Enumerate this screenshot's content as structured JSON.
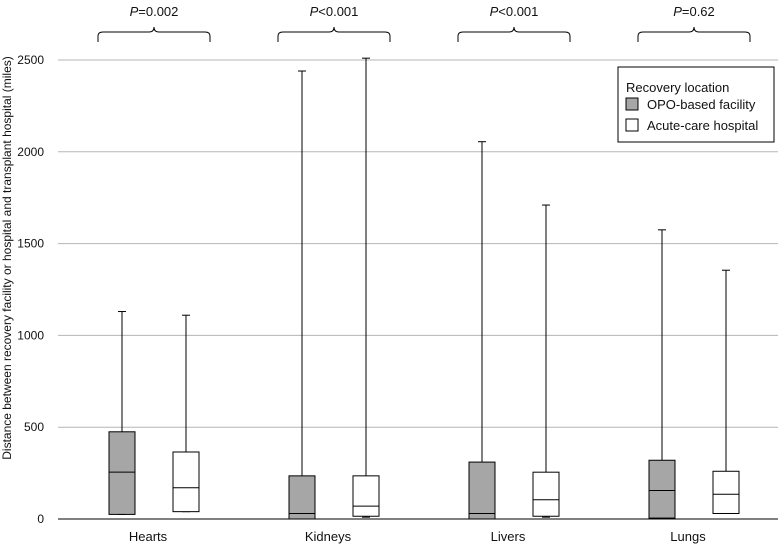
{
  "chart_data": {
    "type": "boxplot",
    "ylabel": "Distance between recovery facility or hospital and transplant hospital (miles)",
    "ylim": [
      0,
      2500
    ],
    "yticks": [
      0,
      500,
      1000,
      1500,
      2000,
      2500
    ],
    "grid": true,
    "categories": [
      "Hearts",
      "Kidneys",
      "Livers",
      "Lungs"
    ],
    "legend": {
      "title": "Recovery location",
      "position": "top-right",
      "entries": [
        {
          "label": "OPO-based facility",
          "color": "#a6a6a6"
        },
        {
          "label": "Acute-care hospital",
          "color": "#ffffff"
        }
      ]
    },
    "annotations": [
      {
        "category": "Hearts",
        "p_symbol": "P",
        "p_rest": "=0.002"
      },
      {
        "category": "Kidneys",
        "p_symbol": "P",
        "p_rest": "<0.001"
      },
      {
        "category": "Livers",
        "p_symbol": "P",
        "p_rest": "<0.001"
      },
      {
        "category": "Lungs",
        "p_symbol": "P",
        "p_rest": "=0.62"
      }
    ],
    "series": [
      {
        "name": "OPO-based facility",
        "color": "#a6a6a6",
        "boxes": [
          {
            "min": 25,
            "q1": 25,
            "median": 255,
            "q3": 475,
            "max": 1130
          },
          {
            "min": 0,
            "q1": 0,
            "median": 30,
            "q3": 235,
            "max": 2440
          },
          {
            "min": 0,
            "q1": 0,
            "median": 30,
            "q3": 310,
            "max": 2055
          },
          {
            "min": 0,
            "q1": 5,
            "median": 155,
            "q3": 320,
            "max": 1575
          }
        ]
      },
      {
        "name": "Acute-care hospital",
        "color": "#ffffff",
        "boxes": [
          {
            "min": 40,
            "q1": 40,
            "median": 170,
            "q3": 365,
            "max": 1110
          },
          {
            "min": 10,
            "q1": 15,
            "median": 70,
            "q3": 235,
            "max": 2510
          },
          {
            "min": 10,
            "q1": 15,
            "median": 105,
            "q3": 255,
            "max": 1710
          },
          {
            "min": 30,
            "q1": 30,
            "median": 135,
            "q3": 260,
            "max": 1355
          }
        ]
      }
    ]
  }
}
